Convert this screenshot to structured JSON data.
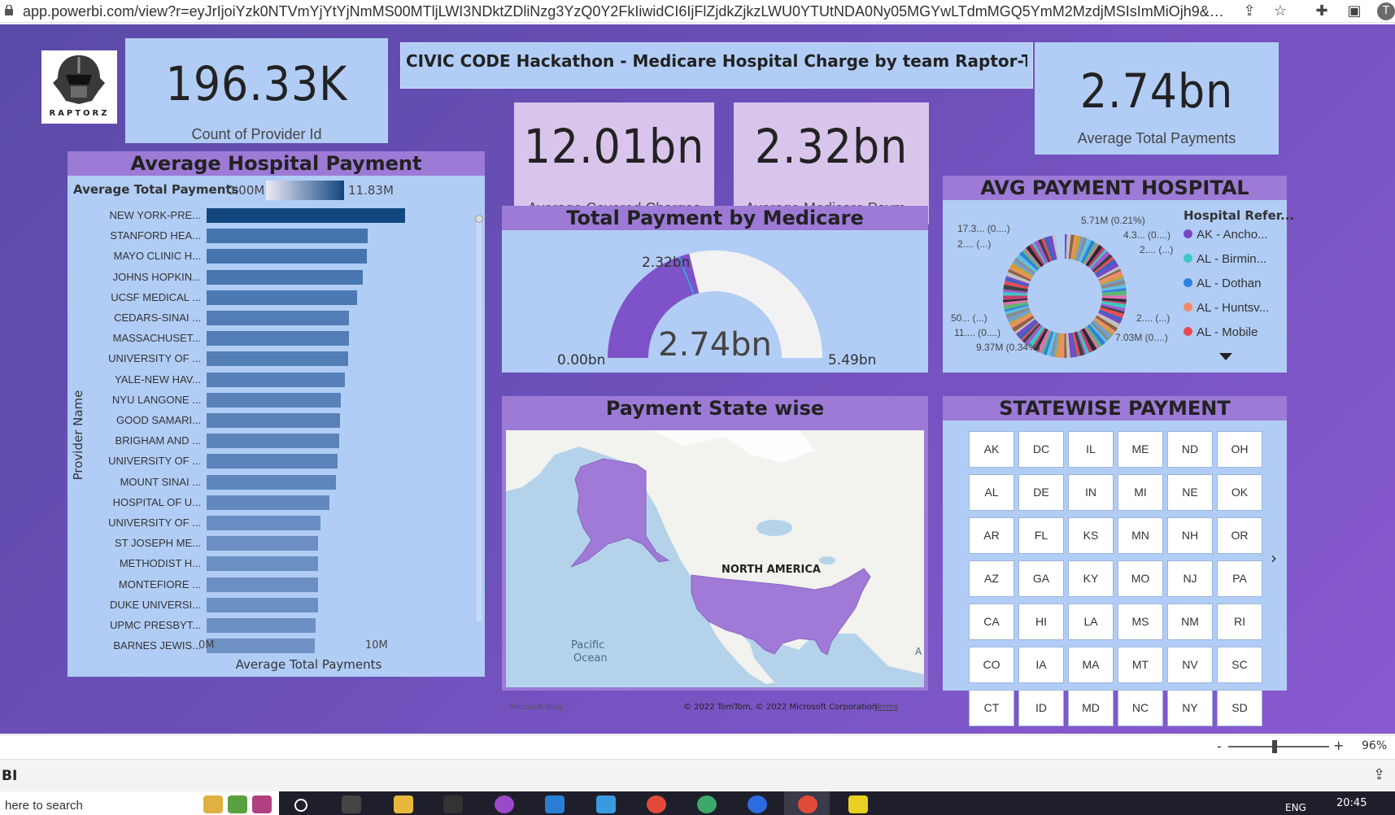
{
  "browser": {
    "url": "app.powerbi.com/view?r=eyJrIjoiYzk0NTVmYjYtYjNmMS00MTljLWI3NDktZDliNzg3YzQ0Y2FkIiwidCI6IjFlZjdkZjkzLWU0YTUtNDA0Ny05MGYwLTdmMGQ5YmM2MzdjMSIsImMiOjh9&pageName...",
    "icons": [
      "share-icon",
      "star-icon",
      "extensions-icon",
      "sidebar-icon",
      "profile-icon"
    ],
    "profile_initial": "T"
  },
  "report": {
    "logo_text": "RAPTORZ",
    "title": "CIVIC CODE Hackathon - Medicare Hospital Charge by team Raptor-TCC"
  },
  "kpis": {
    "count_provider": {
      "value": "196.33K",
      "label": "Count of Provider Id"
    },
    "covered_charges": {
      "value": "12.01bn",
      "label": "Average Covered Charges"
    },
    "medicare_payments": {
      "value": "2.32bn",
      "label": "Average Medicare Paym..."
    },
    "total_payments": {
      "value": "2.74bn",
      "label": "Average Total Payments"
    }
  },
  "bar_chart": {
    "title": "Average Hospital Payment",
    "legend_title": "Average Total Payments",
    "legend_min": "0.00M",
    "legend_max": "11.83M",
    "ylabel": "Provider Name",
    "xlabel": "Average Total Payments",
    "x_ticks": [
      "0M",
      "10M"
    ],
    "colors": {
      "high": "#12467e",
      "low": "#6e90c4"
    }
  },
  "chart_data": [
    {
      "type": "bar",
      "orientation": "horizontal",
      "title": "Average Hospital Payment",
      "xlabel": "Average Total Payments",
      "ylabel": "Provider Name",
      "xlim": [
        0,
        14
      ],
      "categories": [
        "NEW YORK-PRE...",
        "STANFORD HEA...",
        "MAYO CLINIC H...",
        "JOHNS HOPKIN...",
        "UCSF MEDICAL ...",
        "CEDARS-SINAI ...",
        "MASSACHUSET...",
        "UNIVERSITY OF ...",
        "YALE-NEW HAV...",
        "NYU LANGONE ...",
        "GOOD SAMARI...",
        "BRIGHAM AND ...",
        "UNIVERSITY OF ...",
        "MOUNT SINAI ...",
        "HOSPITAL OF U...",
        "UNIVERSITY OF ...",
        "ST JOSEPH ME...",
        "METHODIST H...",
        "MONTEFIORE ...",
        "DUKE UNIVERSI...",
        "UPMC PRESBYT...",
        "BARNES JEWIS..."
      ],
      "values": [
        11.83,
        9.6,
        9.55,
        9.3,
        9.0,
        8.5,
        8.5,
        8.45,
        8.25,
        8.0,
        7.95,
        7.9,
        7.8,
        7.7,
        7.35,
        6.8,
        6.65,
        6.65,
        6.65,
        6.65,
        6.5,
        6.45
      ]
    },
    {
      "type": "gauge",
      "title": "Total Payment by Medicare",
      "value": 2.32,
      "target": 2.74,
      "min": 0,
      "max": 5.49,
      "value_label": "2.32bn",
      "center_label": "2.74bn",
      "min_label": "0.00bn",
      "max_label": "5.49bn"
    },
    {
      "type": "pie",
      "style": "donut",
      "title": "AVG PAYMENT HOSPITAL",
      "legend_title": "Hospital Refer...",
      "legend": [
        "AK - Ancho...",
        "AL - Birmin...",
        "AL - Dothan",
        "AL - Huntsv...",
        "AL - Mobile"
      ],
      "data_labels": [
        "5.71M (0.21%)",
        "4.3... (0....)",
        "2.... (...)",
        "2.... (...)",
        "7.03M (0....)",
        "9.37M (0.34%)",
        "11.... (0....)",
        "50... (...)",
        "17.3... (0....)",
        "2.... (...)"
      ]
    }
  ],
  "gauge": {
    "title": "Total Payment by Medicare",
    "value_label": "2.32bn",
    "center_label": "2.74bn",
    "min_label": "0.00bn",
    "max_label": "5.49bn",
    "fill_color": "#7e52c8",
    "track_color": "#f2f2f2",
    "target_color": "#3aa0d8"
  },
  "donut": {
    "title": "AVG PAYMENT HOSPITAL",
    "legend_title": "Hospital Refer...",
    "legend": [
      {
        "label": "AK - Ancho...",
        "color": "#7b46c8"
      },
      {
        "label": "AL - Birmin...",
        "color": "#3ec9c0"
      },
      {
        "label": "AL - Dothan",
        "color": "#2f7fe0"
      },
      {
        "label": "AL - Huntsv...",
        "color": "#f08c6e"
      },
      {
        "label": "AL - Mobile",
        "color": "#e84a55"
      }
    ],
    "labels": {
      "l1": "17.3... (0....)",
      "l2": "2.... (...)",
      "l3": "5.71M (0.21%)",
      "l4": "4.3... (0....)",
      "l5": "2.... (...)",
      "l6": "50... (...)",
      "l7": "11.... (0....)",
      "l8": "9.37M (0.34%)",
      "l9": "2.... (...)",
      "l10": "7.03M (0....)"
    }
  },
  "map": {
    "title": "Payment State wise",
    "continent_label": "NORTH AMERICA",
    "ocean_label_1": "Pacific",
    "ocean_label_2": "Ocean",
    "edge_label": "A",
    "bing_label": "Microsoft Bing",
    "copyright": "© 2022 TomTom, © 2022 Microsoft Corporation",
    "terms": "Terms"
  },
  "slicer": {
    "title": "STATEWISE PAYMENT",
    "states": [
      "AK",
      "DC",
      "IL",
      "ME",
      "ND",
      "OH",
      "AL",
      "DE",
      "IN",
      "MI",
      "NE",
      "OK",
      "AR",
      "FL",
      "KS",
      "MN",
      "NH",
      "OR",
      "AZ",
      "GA",
      "KY",
      "MO",
      "NJ",
      "PA",
      "CA",
      "HI",
      "LA",
      "MS",
      "NM",
      "RI",
      "CO",
      "IA",
      "MA",
      "MT",
      "NV",
      "SC",
      "CT",
      "ID",
      "MD",
      "NC",
      "NY",
      "SD"
    ]
  },
  "status": {
    "minus": "-",
    "plus": "+",
    "zoom": "96%"
  },
  "bottom": {
    "app_label": "BI"
  },
  "taskbar": {
    "search_placeholder": "here to search",
    "lang": "ENG",
    "time": "20:45"
  }
}
